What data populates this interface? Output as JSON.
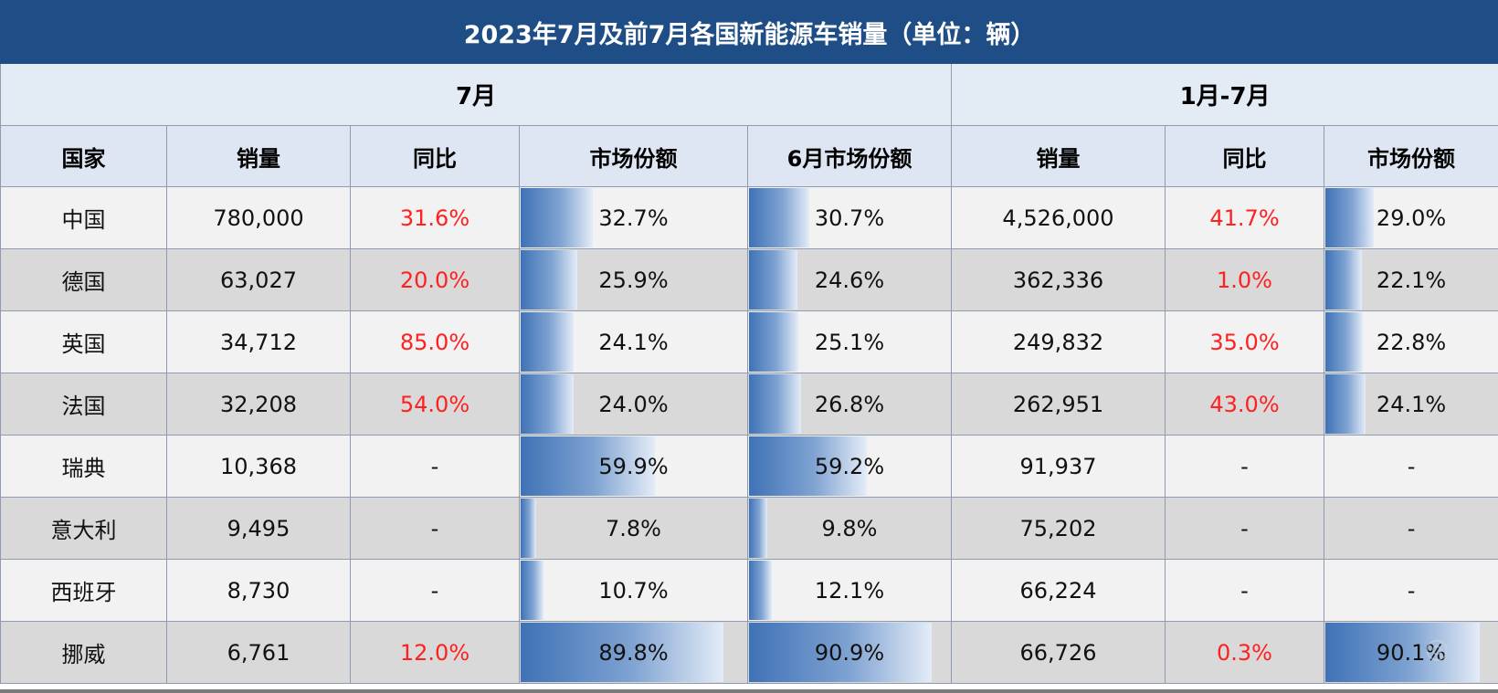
{
  "title": "2023年7月及前7月各国新能源车销量（单位：辆）",
  "groups": {
    "july": "7月",
    "jan_jul": "1月-7月"
  },
  "headers": [
    "国家",
    "销量",
    "同比",
    "市场份额",
    "6月市场份额",
    "销量",
    "同比",
    "市场份额"
  ],
  "rows": [
    {
      "country": "中国",
      "jul_sales": "780,000",
      "jul_yoy": "31.6%",
      "jul_yoy_positive": true,
      "jul_share": "32.7%",
      "jul_share_value": 32.7,
      "jun_share": "30.7%",
      "jun_share_value": 30.7,
      "ytd_sales": "4,526,000",
      "ytd_yoy": "41.7%",
      "ytd_yoy_positive": true,
      "ytd_share": "29.0%",
      "ytd_share_value": 29.0
    },
    {
      "country": "德国",
      "jul_sales": "63,027",
      "jul_yoy": "20.0%",
      "jul_yoy_positive": true,
      "jul_share": "25.9%",
      "jul_share_value": 25.9,
      "jun_share": "24.6%",
      "jun_share_value": 24.6,
      "ytd_sales": "362,336",
      "ytd_yoy": "1.0%",
      "ytd_yoy_positive": true,
      "ytd_share": "22.1%",
      "ytd_share_value": 22.1
    },
    {
      "country": "英国",
      "jul_sales": "34,712",
      "jul_yoy": "85.0%",
      "jul_yoy_positive": true,
      "jul_share": "24.1%",
      "jul_share_value": 24.1,
      "jun_share": "25.1%",
      "jun_share_value": 25.1,
      "ytd_sales": "249,832",
      "ytd_yoy": "35.0%",
      "ytd_yoy_positive": true,
      "ytd_share": "22.8%",
      "ytd_share_value": 22.8
    },
    {
      "country": "法国",
      "jul_sales": "32,208",
      "jul_yoy": "54.0%",
      "jul_yoy_positive": true,
      "jul_share": "24.0%",
      "jul_share_value": 24.0,
      "jun_share": "26.8%",
      "jun_share_value": 26.8,
      "ytd_sales": "262,951",
      "ytd_yoy": "43.0%",
      "ytd_yoy_positive": true,
      "ytd_share": "24.1%",
      "ytd_share_value": 24.1
    },
    {
      "country": "瑞典",
      "jul_sales": "10,368",
      "jul_yoy": "-",
      "jul_yoy_positive": false,
      "jul_share": "59.9%",
      "jul_share_value": 59.9,
      "jun_share": "59.2%",
      "jun_share_value": 59.2,
      "ytd_sales": "91,937",
      "ytd_yoy": "-",
      "ytd_yoy_positive": false,
      "ytd_share": "-",
      "ytd_share_value": 0
    },
    {
      "country": "意大利",
      "jul_sales": "9,495",
      "jul_yoy": "-",
      "jul_yoy_positive": false,
      "jul_share": "7.8%",
      "jul_share_value": 7.8,
      "jun_share": "9.8%",
      "jun_share_value": 9.8,
      "ytd_sales": "75,202",
      "ytd_yoy": "-",
      "ytd_yoy_positive": false,
      "ytd_share": "-",
      "ytd_share_value": 0
    },
    {
      "country": "西班牙",
      "jul_sales": "8,730",
      "jul_yoy": "-",
      "jul_yoy_positive": false,
      "jul_share": "10.7%",
      "jul_share_value": 10.7,
      "jun_share": "12.1%",
      "jun_share_value": 12.1,
      "ytd_sales": "66,224",
      "ytd_yoy": "-",
      "ytd_yoy_positive": false,
      "ytd_share": "-",
      "ytd_share_value": 0
    },
    {
      "country": "挪威",
      "jul_sales": "6,761",
      "jul_yoy": "12.0%",
      "jul_yoy_positive": true,
      "jul_share": "89.8%",
      "jul_share_value": 89.8,
      "jun_share": "90.9%",
      "jun_share_value": 90.9,
      "ytd_sales": "66,726",
      "ytd_yoy": "0.3%",
      "ytd_yoy_positive": true,
      "ytd_share": "90.1%",
      "ytd_share_value": 90.1
    }
  ],
  "colors": {
    "title_bg": "#1f4e86",
    "header_bg": "#dde6f2",
    "positive_text": "#ff2020",
    "bar_start": "#3f72b6",
    "bar_end": "#e4ecf7"
  }
}
